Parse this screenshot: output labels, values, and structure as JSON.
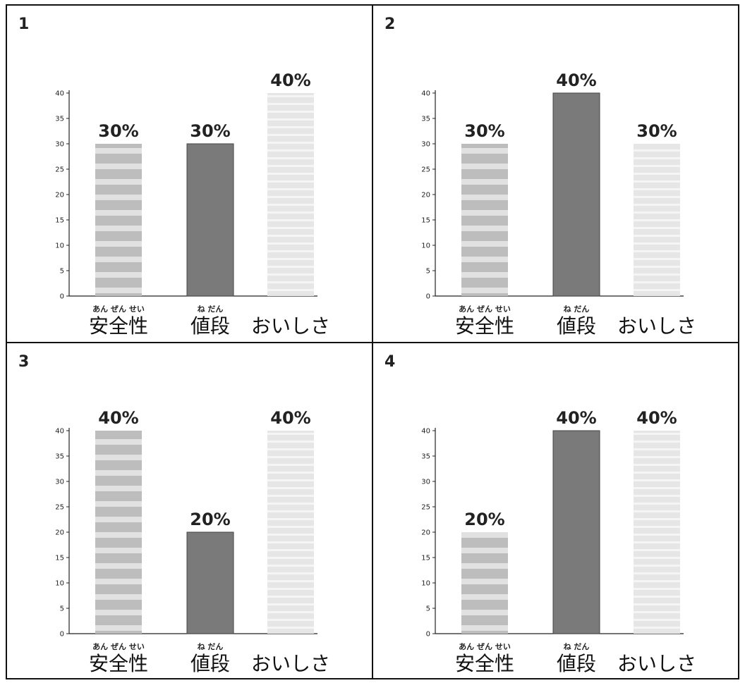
{
  "colors": {
    "safety_fill": "#bdbdbd",
    "price_fill": "#7a7a7a",
    "taste_fill": "#e6e6e6",
    "axis": "#222222",
    "border": "#111111"
  },
  "chart_data": [
    {
      "type": "bar",
      "panel_label": "1",
      "categories": [
        "安全性",
        "値段",
        "おいしさ"
      ],
      "category_readings": [
        "あん ぜん せい",
        "ね だん",
        ""
      ],
      "values": [
        30,
        30,
        40
      ],
      "value_labels": [
        "30%",
        "30%",
        "40%"
      ],
      "ylim": [
        0,
        40
      ],
      "yticks": [
        "0",
        "5",
        "10",
        "15",
        "20",
        "25",
        "30",
        "35",
        "40"
      ],
      "grid": false
    },
    {
      "type": "bar",
      "panel_label": "2",
      "categories": [
        "安全性",
        "値段",
        "おいしさ"
      ],
      "category_readings": [
        "あん ぜん せい",
        "ね だん",
        ""
      ],
      "values": [
        30,
        40,
        30
      ],
      "value_labels": [
        "30%",
        "40%",
        "30%"
      ],
      "ylim": [
        0,
        40
      ],
      "yticks": [
        "0",
        "5",
        "10",
        "15",
        "20",
        "25",
        "30",
        "35",
        "40"
      ],
      "grid": false
    },
    {
      "type": "bar",
      "panel_label": "3",
      "categories": [
        "安全性",
        "値段",
        "おいしさ"
      ],
      "category_readings": [
        "あん ぜん せい",
        "ね だん",
        ""
      ],
      "values": [
        40,
        20,
        40
      ],
      "value_labels": [
        "40%",
        "20%",
        "40%"
      ],
      "ylim": [
        0,
        40
      ],
      "yticks": [
        "0",
        "5",
        "10",
        "15",
        "20",
        "25",
        "30",
        "35",
        "40"
      ],
      "grid": false
    },
    {
      "type": "bar",
      "panel_label": "4",
      "categories": [
        "安全性",
        "値段",
        "おいしさ"
      ],
      "category_readings": [
        "あん ぜん せい",
        "ね だん",
        ""
      ],
      "values": [
        20,
        40,
        40
      ],
      "value_labels": [
        "20%",
        "40%",
        "40%"
      ],
      "ylim": [
        0,
        40
      ],
      "yticks": [
        "0",
        "5",
        "10",
        "15",
        "20",
        "25",
        "30",
        "35",
        "40"
      ],
      "grid": false
    }
  ]
}
